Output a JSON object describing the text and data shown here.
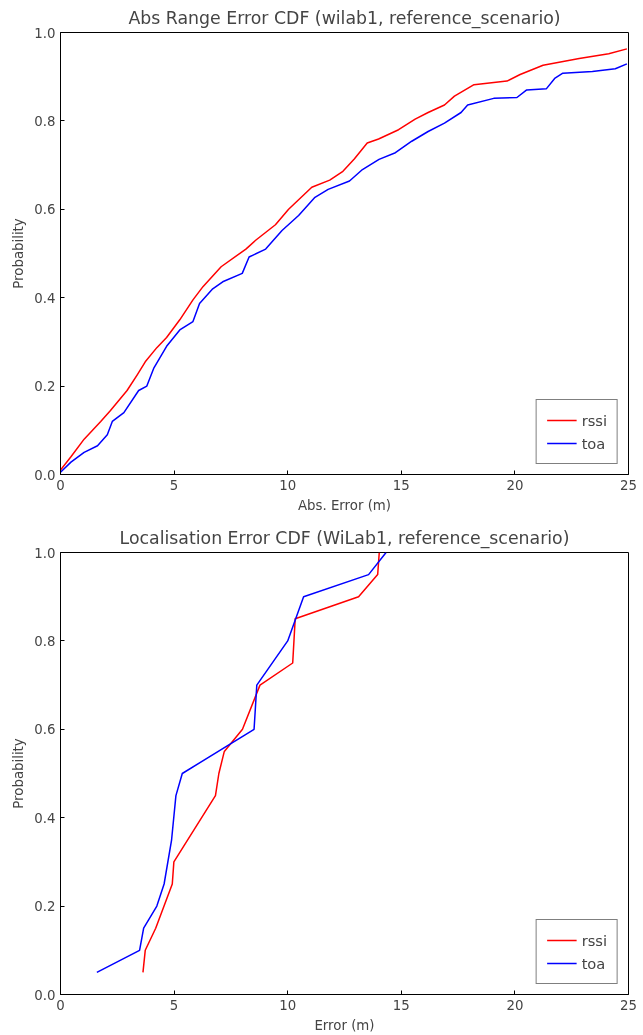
{
  "chart_data": [
    {
      "type": "line",
      "title": "Abs Range Error CDF (wilab1, reference_scenario)",
      "xlabel": "Abs. Error (m)",
      "ylabel": "Probability",
      "xlim": [
        0,
        25
      ],
      "ylim": [
        0,
        1
      ],
      "xticks": [
        0,
        5,
        10,
        15,
        20,
        25
      ],
      "yticks": [
        {
          "value": 0,
          "label": "0.0"
        },
        {
          "value": 0.2,
          "label": "0.2"
        },
        {
          "value": 0.4,
          "label": "0.4"
        },
        {
          "value": 0.6,
          "label": "0.6"
        },
        {
          "value": 0.8,
          "label": "0.8"
        },
        {
          "value": 1,
          "label": "1.0"
        }
      ],
      "grid": false,
      "legend": "bottom right",
      "series": [
        {
          "name": "rssi",
          "color": "#ff0000",
          "x": [
            0,
            0.46,
            1.04,
            1.77,
            2.2,
            2.93,
            3.37,
            3.73,
            4.24,
            4.67,
            5.25,
            5.83,
            6.27,
            7.07,
            8.16,
            8.59,
            9.46,
            10.04,
            11.06,
            11.85,
            12.43,
            12.93,
            13.5,
            14.0,
            14.88,
            15.61,
            16.18,
            16.9,
            17.34,
            18.2,
            19.65,
            20.23,
            21.24,
            22.83,
            24.13,
            24.93
          ],
          "values": [
            0.01,
            0.04,
            0.08,
            0.12,
            0.145,
            0.19,
            0.225,
            0.255,
            0.287,
            0.31,
            0.35,
            0.395,
            0.425,
            0.47,
            0.51,
            0.53,
            0.565,
            0.6,
            0.65,
            0.666,
            0.686,
            0.714,
            0.75,
            0.759,
            0.78,
            0.804,
            0.819,
            0.836,
            0.856,
            0.882,
            0.89,
            0.905,
            0.926,
            0.941,
            0.952,
            0.963
          ]
        },
        {
          "name": "toa",
          "color": "#0000ff",
          "x": [
            0,
            0.46,
            1.04,
            1.63,
            2.06,
            2.28,
            2.79,
            3.44,
            3.8,
            4.1,
            4.67,
            5.25,
            5.83,
            6.12,
            6.7,
            7.14,
            8.0,
            8.3,
            9.03,
            9.75,
            10.48,
            11.2,
            11.78,
            12.72,
            13.29,
            14.02,
            14.74,
            15.46,
            16.18,
            16.9,
            17.63,
            17.92,
            19.07,
            20.09,
            20.52,
            21.39,
            21.75,
            22.11,
            23.41,
            24.42,
            24.93
          ],
          "values": [
            0.005,
            0.028,
            0.05,
            0.065,
            0.09,
            0.12,
            0.14,
            0.19,
            0.2,
            0.24,
            0.29,
            0.327,
            0.346,
            0.387,
            0.42,
            0.436,
            0.455,
            0.492,
            0.51,
            0.552,
            0.586,
            0.627,
            0.645,
            0.664,
            0.69,
            0.713,
            0.728,
            0.754,
            0.776,
            0.795,
            0.819,
            0.836,
            0.851,
            0.853,
            0.87,
            0.873,
            0.896,
            0.908,
            0.912,
            0.918,
            0.929
          ]
        }
      ]
    },
    {
      "type": "line",
      "title": "Localisation Error CDF (WiLab1, reference_scenario)",
      "xlabel": "Error (m)",
      "ylabel": "Probability",
      "xlim": [
        0,
        25
      ],
      "ylim": [
        0,
        1
      ],
      "xticks": [
        0,
        5,
        10,
        15,
        20,
        25
      ],
      "yticks": [
        {
          "value": 0,
          "label": "0.0"
        },
        {
          "value": 0.2,
          "label": "0.2"
        },
        {
          "value": 0.4,
          "label": "0.4"
        },
        {
          "value": 0.6,
          "label": "0.6"
        },
        {
          "value": 0.8,
          "label": "0.8"
        },
        {
          "value": 1,
          "label": "1.0"
        }
      ],
      "grid": false,
      "legend": "bottom right",
      "series": [
        {
          "name": "rssi",
          "color": "#ff0000",
          "x": [
            3.63,
            3.73,
            4.19,
            4.92,
            4.99,
            6.82,
            6.97,
            7.21,
            8.01,
            8.78,
            10.22,
            10.33,
            13.12,
            13.96,
            14.03
          ],
          "values": [
            0.05,
            0.1,
            0.15,
            0.25,
            0.3,
            0.45,
            0.5,
            0.55,
            0.6,
            0.7,
            0.75,
            0.85,
            0.9,
            0.95,
            1.0
          ]
        },
        {
          "name": "toa",
          "color": "#0000ff",
          "x": [
            1.6,
            3.48,
            3.66,
            4.24,
            4.56,
            4.89,
            5.08,
            5.36,
            8.52,
            8.64,
            10.0,
            10.7,
            13.56,
            14.33
          ],
          "values": [
            0.05,
            0.1,
            0.15,
            0.2,
            0.25,
            0.35,
            0.45,
            0.5,
            0.6,
            0.7,
            0.8,
            0.9,
            0.95,
            1.0
          ]
        }
      ]
    }
  ]
}
